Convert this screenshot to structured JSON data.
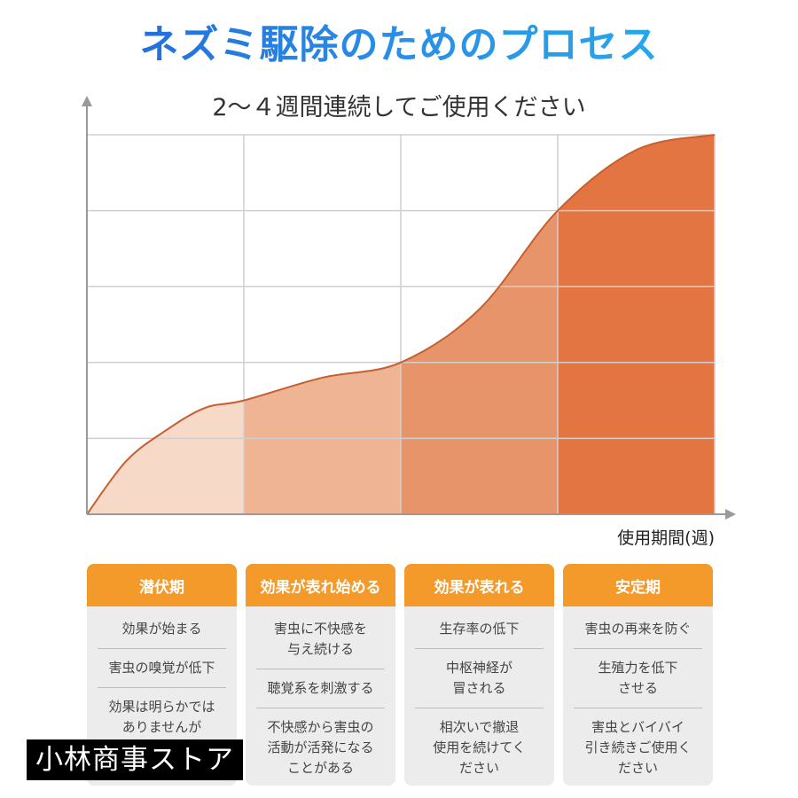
{
  "page": {
    "title": "ネズミ駆除のためのプロセス"
  },
  "chart_data": {
    "type": "area",
    "title": "2～４週間連続してご使用ください",
    "xlabel": "使用期間(週)",
    "ylabel": "",
    "xlim": [
      0,
      4
    ],
    "ylim": [
      0,
      5
    ],
    "grid": true,
    "x": [
      0,
      0.25,
      0.5,
      0.75,
      1,
      1.5,
      2,
      2.5,
      3,
      3.5,
      4
    ],
    "values": [
      0,
      0.7,
      1.1,
      1.4,
      1.5,
      1.8,
      2.0,
      2.7,
      4.0,
      4.8,
      5.0
    ],
    "segments": [
      {
        "x": [
          0,
          1
        ],
        "color": "#f7d9c8"
      },
      {
        "x": [
          1,
          2
        ],
        "color": "#eeb494"
      },
      {
        "x": [
          2,
          3
        ],
        "color": "#e8946a"
      },
      {
        "x": [
          3,
          4
        ],
        "color": "#e27542"
      }
    ],
    "line_color": "#c85e2c"
  },
  "stages": [
    {
      "title": "潜伏期",
      "items": [
        "効果が始まる",
        "害虫の嗅覚が低下",
        "効果は明らかでは\nありませんが\n使用を続けてください"
      ]
    },
    {
      "title": "効果が表れ始める",
      "items": [
        "害虫に不快感を\n与え続ける",
        "聴覚系を刺激する",
        "不快感から害虫の\n活動が活発になる\nことがある"
      ]
    },
    {
      "title": "効果が表れる",
      "items": [
        "生存率の低下",
        "中枢神経が\n冒される",
        "相次いで撤退\n使用を続けてく\nださい"
      ]
    },
    {
      "title": "安定期",
      "items": [
        "害虫の再来を防ぐ",
        "生殖力を低下\nさせる",
        "害虫とバイバイ\n引き続きご使用く\nださい"
      ]
    }
  ],
  "watermark": "小林商事ストア",
  "colors": {
    "title_gradient": [
      "#1e5fd6",
      "#22b3ee"
    ],
    "stage_header": "#f39a2a",
    "stage_body": "#ececec"
  }
}
